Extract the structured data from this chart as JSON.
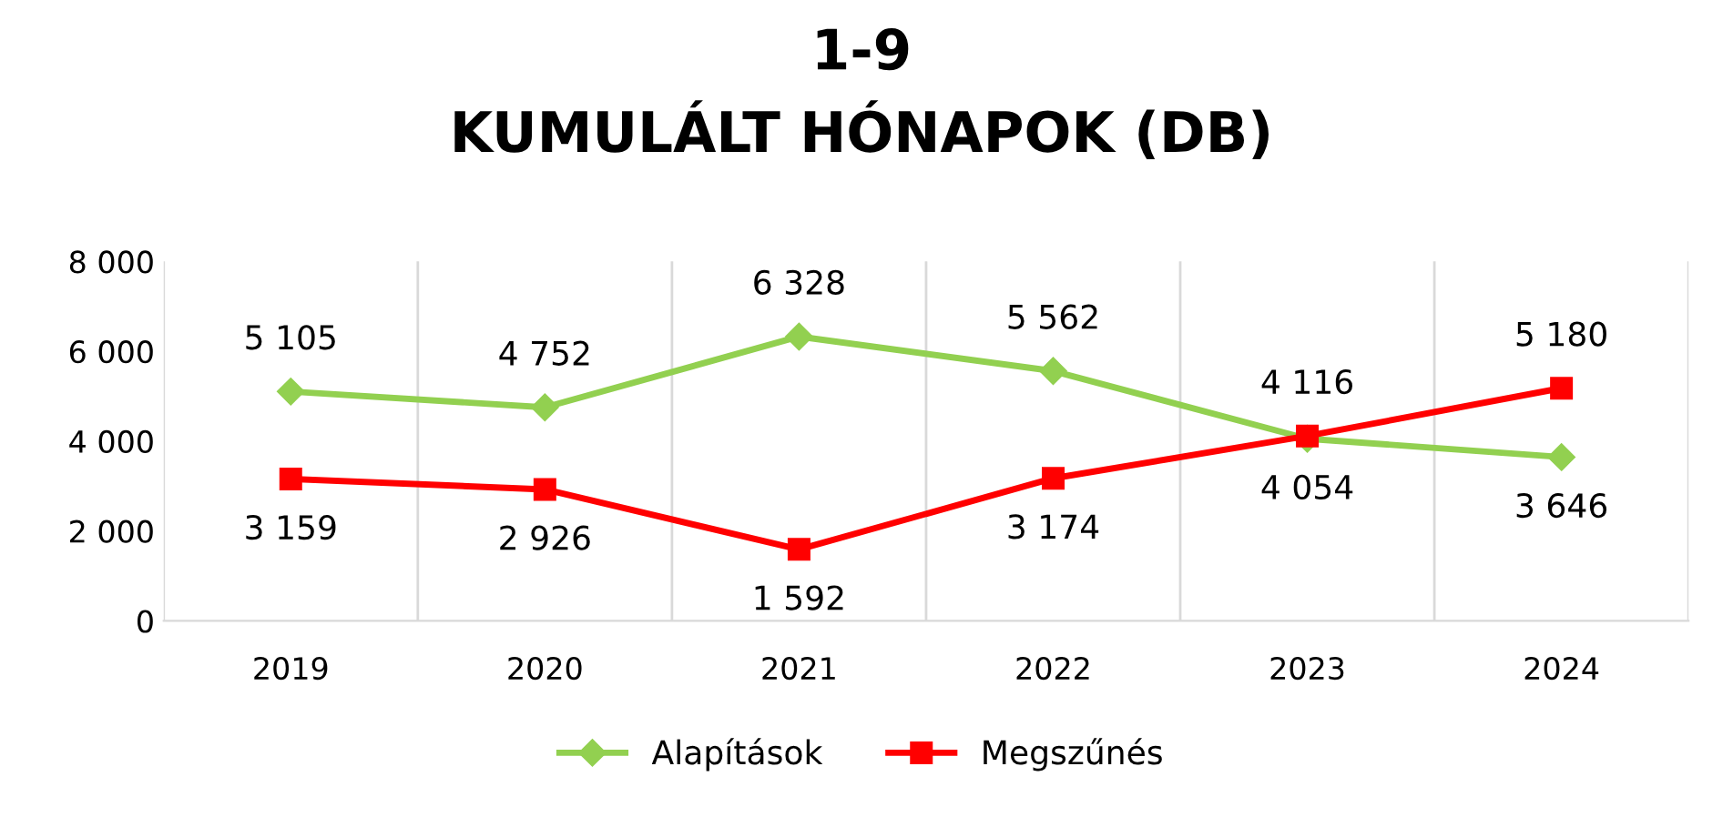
{
  "chart_data": {
    "type": "line",
    "title": "1-9\nKUMULÁLT HÓNAPOK (DB)",
    "categories": [
      "2019",
      "2020",
      "2021",
      "2022",
      "2023",
      "2024"
    ],
    "series": [
      {
        "name": "Alapítások",
        "color": "#92d050",
        "marker": "diamond",
        "values": [
          5105,
          4752,
          6328,
          5562,
          4054,
          3646
        ],
        "value_labels": [
          "5 105",
          "4 752",
          "6 328",
          "5 562",
          "4 054",
          "3 646"
        ]
      },
      {
        "name": "Megszűnés",
        "color": "#ff0000",
        "marker": "square",
        "values": [
          3159,
          2926,
          1592,
          3174,
          4116,
          5180
        ],
        "value_labels": [
          "3 159",
          "2 926",
          "1 592",
          "3 174",
          "4 116",
          "5 180"
        ]
      }
    ],
    "ylim": [
      0,
      8000
    ],
    "yticks": [
      0,
      {
        "value": 2000,
        "label": "2 000"
      },
      {
        "value": 4000,
        "label": "4 000"
      },
      {
        "value": 6000,
        "label": "6 000"
      },
      {
        "value": 8000,
        "label": "8 000"
      }
    ],
    "grid": "x",
    "legend": "bottom",
    "line_style": "solid"
  }
}
